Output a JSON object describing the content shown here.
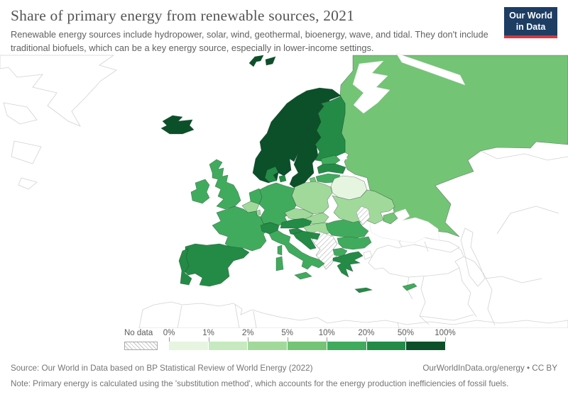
{
  "header": {
    "title": "Share of primary energy from renewable sources, 2021",
    "subtitle": "Renewable energy sources include hydropower, solar, wind, geothermal, bioenergy, wave, and tidal. They don't include traditional biofuels, which can be a key energy source, especially in lower-income settings.",
    "logo": {
      "line1": "Our World",
      "line2": "in Data",
      "bg_color": "#1d3d63",
      "accent_color": "#d7373f"
    }
  },
  "legend": {
    "no_data_label": "No data",
    "tick_labels": [
      "0%",
      "1%",
      "2%",
      "5%",
      "10%",
      "20%",
      "50%",
      "100%"
    ],
    "bin_labels": [
      "0-1%",
      "1-2%",
      "2-5%",
      "5-10%",
      "10-20%",
      "20-50%",
      "50-100%"
    ],
    "bin_colors": [
      "#e5f5e0",
      "#c7e9c0",
      "#a1d99b",
      "#74c476",
      "#41ab5d",
      "#238b45",
      "#0b5029"
    ]
  },
  "chart_data": {
    "type": "choropleth",
    "title": "Share of primary energy from renewable sources, 2021",
    "unit": "%",
    "region_shown": "Europe",
    "scale_stops_percent": [
      0,
      1,
      2,
      5,
      10,
      20,
      50,
      100
    ],
    "legend_position": "bottom",
    "regions": [
      {
        "id": "russia",
        "name": "Russia",
        "bin": "5-10%"
      },
      {
        "id": "iceland",
        "name": "Iceland",
        "bin": "50-100%"
      },
      {
        "id": "svalbard",
        "name": "Svalbard (Norway)",
        "bin": "50-100%"
      },
      {
        "id": "norway",
        "name": "Norway",
        "bin": "50-100%"
      },
      {
        "id": "sweden",
        "name": "Sweden",
        "bin": "50-100%"
      },
      {
        "id": "finland",
        "name": "Finland",
        "bin": "20-50%"
      },
      {
        "id": "denmark",
        "name": "Denmark",
        "bin": "20-50%"
      },
      {
        "id": "estonia",
        "name": "Estonia",
        "bin": "10-20%"
      },
      {
        "id": "latvia",
        "name": "Latvia",
        "bin": "20-50%"
      },
      {
        "id": "lithuania",
        "name": "Lithuania",
        "bin": "10-20%"
      },
      {
        "id": "kaliningrad",
        "name": "Russia (Kaliningrad)",
        "bin": "5-10%"
      },
      {
        "id": "belarus",
        "name": "Belarus",
        "bin": "0-1%"
      },
      {
        "id": "poland",
        "name": "Poland",
        "bin": "2-5%"
      },
      {
        "id": "germany",
        "name": "Germany",
        "bin": "10-20%"
      },
      {
        "id": "netherlands",
        "name": "Netherlands",
        "bin": "10-20%"
      },
      {
        "id": "belgium",
        "name": "Belgium",
        "bin": "2-5%"
      },
      {
        "id": "luxembourg",
        "name": "Luxembourg",
        "bin": "2-5%"
      },
      {
        "id": "uk",
        "name": "United Kingdom",
        "bin": "10-20%"
      },
      {
        "id": "ireland",
        "name": "Ireland",
        "bin": "10-20%"
      },
      {
        "id": "france",
        "name": "France",
        "bin": "10-20%"
      },
      {
        "id": "spain",
        "name": "Spain",
        "bin": "20-50%"
      },
      {
        "id": "portugal",
        "name": "Portugal",
        "bin": "20-50%"
      },
      {
        "id": "switzerland",
        "name": "Switzerland",
        "bin": "20-50%"
      },
      {
        "id": "czechia",
        "name": "Czechia",
        "bin": "2-5%"
      },
      {
        "id": "slovakia",
        "name": "Slovakia",
        "bin": "2-5%"
      },
      {
        "id": "austria",
        "name": "Austria",
        "bin": "20-50%"
      },
      {
        "id": "hungary",
        "name": "Hungary",
        "bin": "2-5%"
      },
      {
        "id": "slovenia",
        "name": "Slovenia",
        "bin": "20-50%"
      },
      {
        "id": "westbalkans",
        "name": "Bosnia and Herzegovina / Serbia / Kosovo / Montenegro / Albania",
        "bin": "nodata"
      },
      {
        "id": "croatia",
        "name": "Croatia",
        "bin": "20-50%"
      },
      {
        "id": "ukraine",
        "name": "Ukraine",
        "bin": "2-5%"
      },
      {
        "id": "moldova",
        "name": "Moldova",
        "bin": "nodata"
      },
      {
        "id": "romania",
        "name": "Romania",
        "bin": "10-20%"
      },
      {
        "id": "bulgaria",
        "name": "Bulgaria",
        "bin": "10-20%"
      },
      {
        "id": "northmacedonia",
        "name": "North Macedonia",
        "bin": "10-20%"
      },
      {
        "id": "greece",
        "name": "Greece",
        "bin": "20-50%"
      },
      {
        "id": "italy",
        "name": "Italy",
        "bin": "10-20%"
      },
      {
        "id": "cyprus",
        "name": "Cyprus",
        "bin": "10-20%"
      },
      {
        "id": "crimea",
        "name": "Crimea",
        "bin": "5-10%"
      }
    ],
    "no_data_regions": [
      "Bosnia and Herzegovina",
      "Serbia",
      "Kosovo",
      "Montenegro",
      "Albania",
      "Moldova"
    ]
  },
  "footer": {
    "source": "Source: Our World in Data based on BP Statistical Review of World Energy (2022)",
    "credit": "OurWorldInData.org/energy • CC BY",
    "note": "Note: Primary energy is calculated using the 'substitution method', which accounts for the energy production inefficiencies of fossil fuels."
  }
}
